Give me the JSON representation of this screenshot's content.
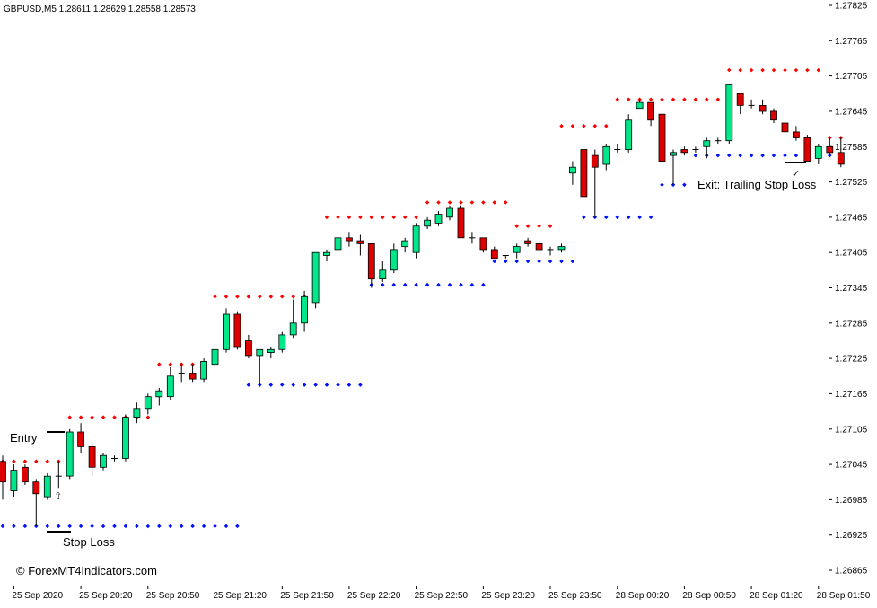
{
  "chart_data": {
    "type": "candlestick",
    "symbol_header": "GBPUSD,M5  1.28611 1.28629 1.28558 1.28573",
    "ylim": [
      1.2683,
      1.2785
    ],
    "y_ticks": [
      "1.27825",
      "1.27765",
      "1.27705",
      "1.27645",
      "1.27585",
      "1.27525",
      "1.27465",
      "1.27405",
      "1.27345",
      "1.27285",
      "1.27225",
      "1.27165",
      "1.27105",
      "1.27045",
      "1.26985",
      "1.26925",
      "1.26865"
    ],
    "x_labels": [
      {
        "i": 1,
        "label": "25 Sep 2020"
      },
      {
        "i": 7,
        "label": "25 Sep 20:20"
      },
      {
        "i": 13,
        "label": "25 Sep 20:50"
      },
      {
        "i": 19,
        "label": "25 Sep 21:20"
      },
      {
        "i": 25,
        "label": "25 Sep 21:50"
      },
      {
        "i": 31,
        "label": "25 Sep 22:20"
      },
      {
        "i": 37,
        "label": "25 Sep 22:50"
      },
      {
        "i": 43,
        "label": "25 Sep 23:20"
      },
      {
        "i": 49,
        "label": "25 Sep 23:50"
      },
      {
        "i": 55,
        "label": "28 Sep 00:20"
      },
      {
        "i": 61,
        "label": "28 Sep 00:50"
      },
      {
        "i": 67,
        "label": "28 Sep 01:20"
      },
      {
        "i": 73,
        "label": "28 Sep 01:50"
      }
    ],
    "candles": [
      [
        1.2705,
        1.2706,
        1.26985,
        1.27015
      ],
      [
        1.27,
        1.27045,
        1.2699,
        1.27035
      ],
      [
        1.2704,
        1.27045,
        1.2701,
        1.27015
      ],
      [
        1.27015,
        1.2702,
        1.2694,
        1.26995
      ],
      [
        1.2699,
        1.2703,
        1.26985,
        1.27025
      ],
      [
        1.27025,
        1.2705,
        1.27005,
        1.27025
      ],
      [
        1.27025,
        1.27105,
        1.2702,
        1.271
      ],
      [
        1.271,
        1.27115,
        1.27065,
        1.27075
      ],
      [
        1.27075,
        1.2708,
        1.27025,
        1.2704
      ],
      [
        1.2704,
        1.27065,
        1.27035,
        1.2706
      ],
      [
        1.27055,
        1.2706,
        1.2705,
        1.27055
      ],
      [
        1.27055,
        1.2713,
        1.2705,
        1.27125
      ],
      [
        1.27125,
        1.2715,
        1.27115,
        1.2714
      ],
      [
        1.2714,
        1.27165,
        1.2713,
        1.2716
      ],
      [
        1.2716,
        1.27175,
        1.27145,
        1.2717
      ],
      [
        1.2716,
        1.2721,
        1.27155,
        1.27195
      ],
      [
        1.272,
        1.27215,
        1.27185,
        1.272
      ],
      [
        1.272,
        1.27215,
        1.27185,
        1.2719
      ],
      [
        1.2719,
        1.27225,
        1.27185,
        1.2722
      ],
      [
        1.27215,
        1.2726,
        1.27205,
        1.2724
      ],
      [
        1.2724,
        1.2731,
        1.27235,
        1.273
      ],
      [
        1.273,
        1.27305,
        1.2724,
        1.27245
      ],
      [
        1.27255,
        1.27265,
        1.27225,
        1.2723
      ],
      [
        1.2723,
        1.2724,
        1.2718,
        1.2724
      ],
      [
        1.27235,
        1.27245,
        1.27225,
        1.2724
      ],
      [
        1.2724,
        1.2727,
        1.27235,
        1.27265
      ],
      [
        1.27265,
        1.27325,
        1.2726,
        1.27285
      ],
      [
        1.27285,
        1.2734,
        1.2727,
        1.2733
      ],
      [
        1.2732,
        1.27405,
        1.2731,
        1.27405
      ],
      [
        1.274,
        1.2741,
        1.2739,
        1.27405
      ],
      [
        1.2741,
        1.2745,
        1.27375,
        1.2743
      ],
      [
        1.2743,
        1.2744,
        1.27415,
        1.27425
      ],
      [
        1.27425,
        1.27435,
        1.274,
        1.2742
      ],
      [
        1.2742,
        1.2742,
        1.27345,
        1.2736
      ],
      [
        1.2736,
        1.2739,
        1.27355,
        1.27375
      ],
      [
        1.27375,
        1.2742,
        1.2737,
        1.2741
      ],
      [
        1.27415,
        1.2743,
        1.27405,
        1.27425
      ],
      [
        1.27405,
        1.27455,
        1.27395,
        1.2745
      ],
      [
        1.2745,
        1.27465,
        1.27445,
        1.2746
      ],
      [
        1.27455,
        1.27475,
        1.2745,
        1.2747
      ],
      [
        1.27465,
        1.27485,
        1.2746,
        1.2748
      ],
      [
        1.2748,
        1.27485,
        1.2743,
        1.2743
      ],
      [
        1.2743,
        1.2744,
        1.2742,
        1.2743
      ],
      [
        1.2743,
        1.2743,
        1.27405,
        1.2741
      ],
      [
        1.2741,
        1.27415,
        1.27395,
        1.27395
      ],
      [
        1.274,
        1.274,
        1.27395,
        1.274
      ],
      [
        1.27405,
        1.2742,
        1.27395,
        1.27415
      ],
      [
        1.27425,
        1.2743,
        1.27415,
        1.2742
      ],
      [
        1.2742,
        1.27425,
        1.2741,
        1.2741
      ],
      [
        1.2741,
        1.27415,
        1.274,
        1.2741
      ],
      [
        1.2741,
        1.2742,
        1.27405,
        1.27415
      ],
      [
        1.2754,
        1.2756,
        1.2752,
        1.2755
      ],
      [
        1.2758,
        1.2758,
        1.275,
        1.275
      ],
      [
        1.2757,
        1.2758,
        1.27465,
        1.2755
      ],
      [
        1.27555,
        1.2759,
        1.27545,
        1.27585
      ],
      [
        1.2758,
        1.2759,
        1.27575,
        1.2758
      ],
      [
        1.2758,
        1.2764,
        1.27575,
        1.2763
      ],
      [
        1.2765,
        1.27665,
        1.2765,
        1.2766
      ],
      [
        1.2766,
        1.2766,
        1.2762,
        1.2763
      ],
      [
        1.2764,
        1.2764,
        1.2756,
        1.2756
      ],
      [
        1.2757,
        1.2758,
        1.2752,
        1.27575
      ],
      [
        1.2758,
        1.27585,
        1.2757,
        1.27575
      ],
      [
        1.2758,
        1.27585,
        1.27575,
        1.2758
      ],
      [
        1.27585,
        1.276,
        1.27565,
        1.27595
      ],
      [
        1.27595,
        1.276,
        1.2759,
        1.27595
      ],
      [
        1.27595,
        1.2769,
        1.2759,
        1.2769
      ],
      [
        1.27675,
        1.27675,
        1.2764,
        1.27655
      ],
      [
        1.27655,
        1.27665,
        1.2765,
        1.27655
      ],
      [
        1.27655,
        1.27665,
        1.2764,
        1.27645
      ],
      [
        1.27645,
        1.2765,
        1.27625,
        1.2763
      ],
      [
        1.27625,
        1.2764,
        1.2759,
        1.2761
      ],
      [
        1.2761,
        1.2762,
        1.27595,
        1.276
      ],
      [
        1.276,
        1.27605,
        1.2756,
        1.2756
      ],
      [
        1.27565,
        1.2759,
        1.27555,
        1.27585
      ],
      [
        1.27585,
        1.276,
        1.2757,
        1.27575
      ],
      [
        1.27575,
        1.276,
        1.2755,
        1.27555
      ]
    ],
    "resistance_segments": [
      {
        "from": 0,
        "to": 5,
        "value": 1.2705
      },
      {
        "from": 6,
        "to": 13,
        "value": 1.27125
      },
      {
        "from": 14,
        "to": 18,
        "value": 1.27215
      },
      {
        "from": 19,
        "to": 28,
        "value": 1.2733
      },
      {
        "from": 29,
        "to": 37,
        "value": 1.27465
      },
      {
        "from": 38,
        "to": 45,
        "value": 1.2749
      },
      {
        "from": 46,
        "to": 49,
        "value": 1.2745
      },
      {
        "from": 50,
        "to": 54,
        "value": 1.2762
      },
      {
        "from": 55,
        "to": 64,
        "value": 1.27665
      },
      {
        "from": 65,
        "to": 73,
        "value": 1.27715
      },
      {
        "from": 74,
        "to": 75,
        "value": 1.276
      }
    ],
    "support_segments": [
      {
        "from": 0,
        "to": 21,
        "value": 1.2694
      },
      {
        "from": 22,
        "to": 32,
        "value": 1.2718
      },
      {
        "from": 33,
        "to": 43,
        "value": 1.2735
      },
      {
        "from": 44,
        "to": 51,
        "value": 1.2739
      },
      {
        "from": 52,
        "to": 58,
        "value": 1.27465
      },
      {
        "from": 59,
        "to": 61,
        "value": 1.2752
      },
      {
        "from": 62,
        "to": 75,
        "value": 1.2757
      }
    ],
    "colors": {
      "bull": "#00e68a",
      "bear": "#dc0000",
      "wick": "#000000",
      "resistance": "#ff0000",
      "support": "#0010ff",
      "grid": "#ffffff",
      "axis": "#000000"
    }
  },
  "annotations": {
    "entry": "Entry",
    "stop_loss": "Stop Loss",
    "exit": "Exit: Trailing Stop Loss",
    "watermark": "© ForexMT4Indicators.com"
  }
}
